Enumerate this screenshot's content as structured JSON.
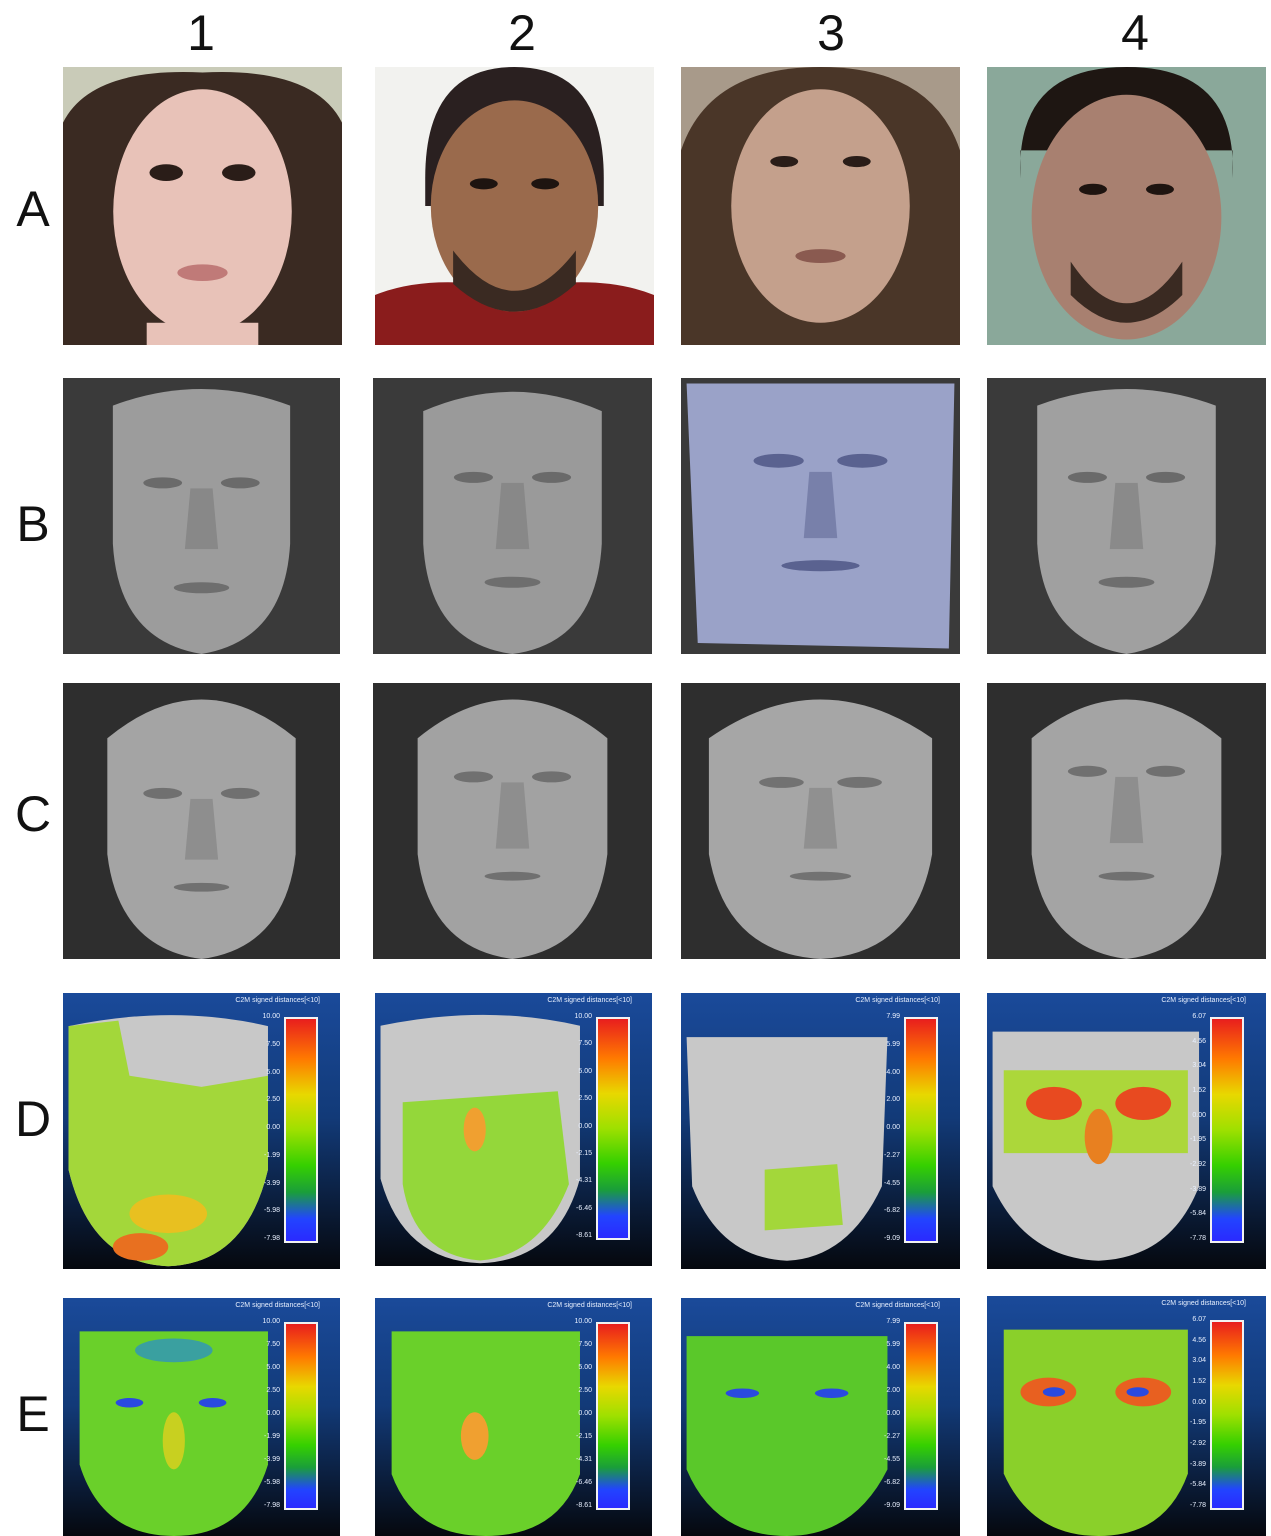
{
  "columns": [
    "1",
    "2",
    "3",
    "4"
  ],
  "rows": [
    "A",
    "B",
    "C",
    "D",
    "E"
  ],
  "colorbar_title": "C2M signed distances[<10]",
  "colorbars": [
    {
      "ticks": [
        "10.00",
        "7.50",
        "5.00",
        "2.50",
        "0.00",
        "-1.99",
        "-3.99",
        "-5.98",
        "-7.98"
      ]
    },
    {
      "ticks": [
        "10.00",
        "7.50",
        "5.00",
        "2.50",
        "0.00",
        "-2.15",
        "-4.31",
        "-6.46",
        "-8.61"
      ]
    },
    {
      "ticks": [
        "7.99",
        "5.99",
        "4.00",
        "2.00",
        "0.00",
        "-2.27",
        "-4.55",
        "-6.82",
        "-9.09"
      ]
    },
    {
      "ticks": [
        "6.07",
        "4.56",
        "3.04",
        "1.52",
        "0.00",
        "-1.95",
        "-2.92",
        "-3.89",
        "-5.84",
        "-7.78"
      ]
    }
  ],
  "colors": {
    "scale_top": "#e81e1e",
    "scale_mid": "#9ee000",
    "scale_bottom": "#2a2aff",
    "heat_background": "#1a4a9a"
  }
}
